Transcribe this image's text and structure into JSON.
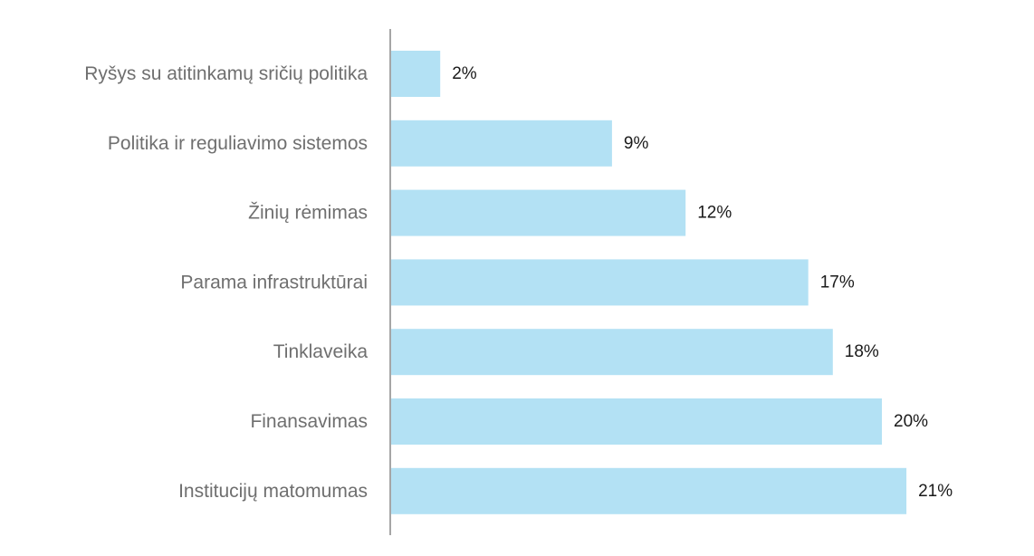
{
  "chart_data": {
    "type": "bar",
    "orientation": "horizontal",
    "categories": [
      "Ryšys su atitinkamų sričių politika",
      "Politika ir reguliavimo sistemos",
      "Žinių rėmimas",
      "Parama infrastruktūrai",
      "Tinklaveika",
      "Finansavimas",
      "Institucijų matomumas"
    ],
    "values": [
      2,
      9,
      12,
      17,
      18,
      20,
      21
    ],
    "value_labels": [
      "2%",
      "9%",
      "12%",
      "17%",
      "18%",
      "20%",
      "21%"
    ],
    "unit": "%",
    "xlim": [
      0,
      21
    ],
    "grid": false,
    "legend": "none",
    "bar_color": "#b3e1f4",
    "axis_color": "#a6a6a6"
  }
}
